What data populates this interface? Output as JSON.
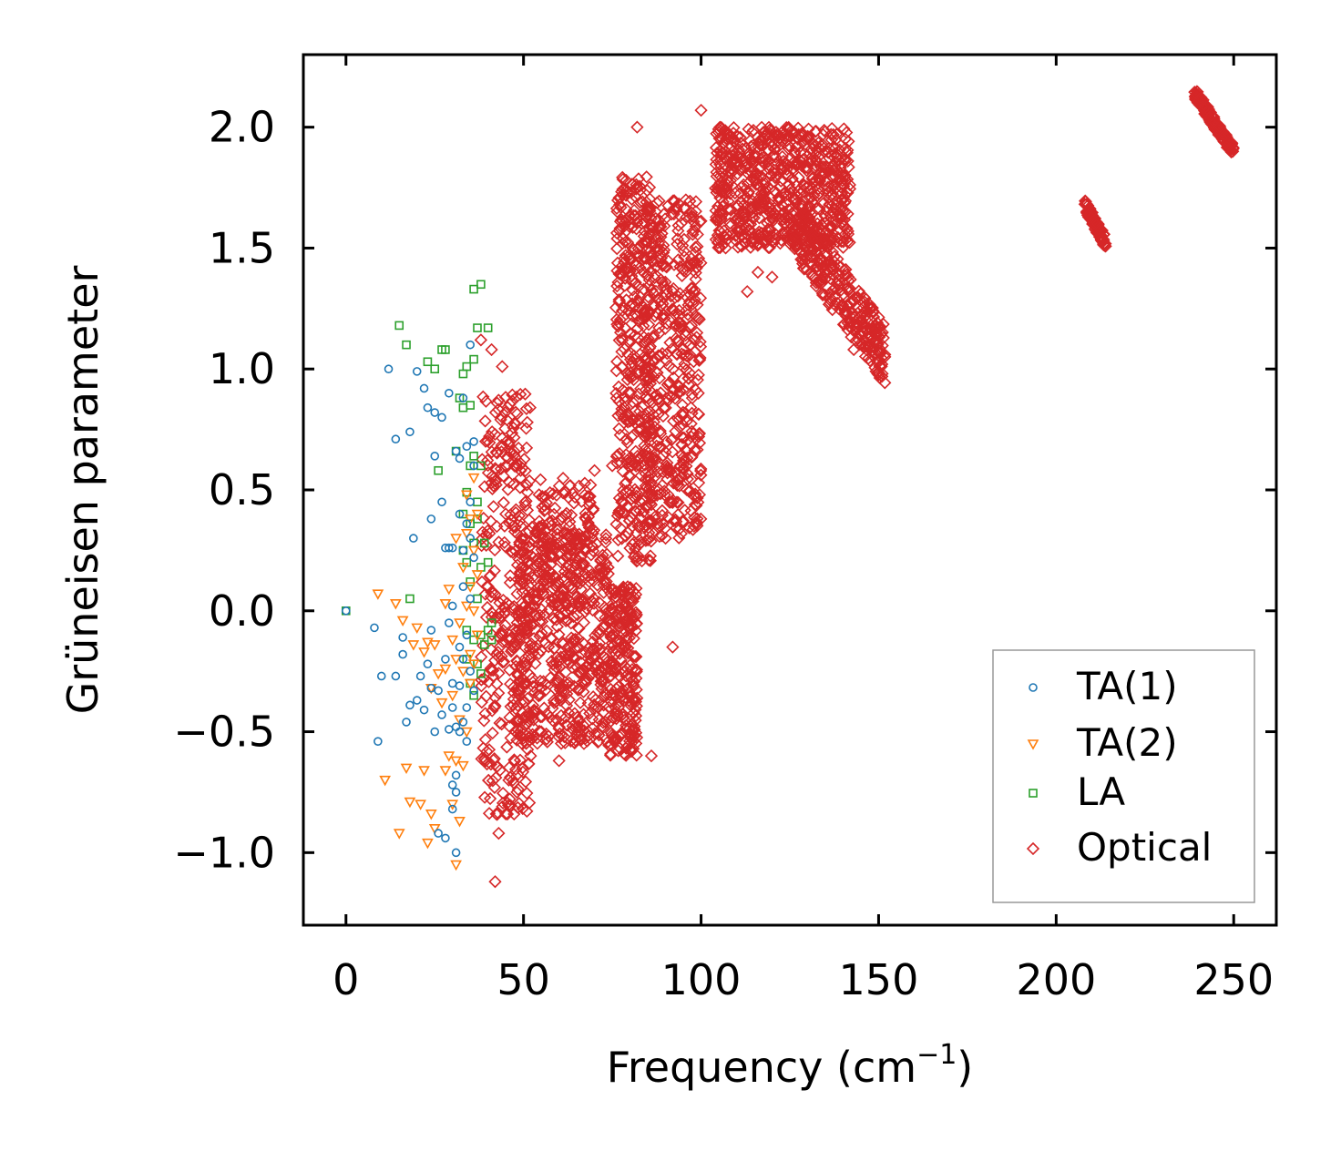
{
  "chart_data": {
    "type": "scatter",
    "title": "",
    "xlabel": "Frequency (cm",
    "xlabel_sup": "−1",
    "xlabel_tail": ")",
    "ylabel": "Grüneisen parameter",
    "xlim": [
      -12,
      262
    ],
    "ylim": [
      -1.3,
      2.3
    ],
    "xticks": [
      0,
      50,
      100,
      150,
      200,
      250
    ],
    "xtick_labels": [
      "0",
      "50",
      "100",
      "150",
      "200",
      "250"
    ],
    "yticks": [
      -1.0,
      -0.5,
      0.0,
      0.5,
      1.0,
      1.5,
      2.0
    ],
    "ytick_labels": [
      "−1.0",
      "−0.5",
      "0.0",
      "0.5",
      "1.0",
      "1.5",
      "2.0"
    ],
    "legend_position": "lower-right",
    "series": [
      {
        "name": "TA(1)",
        "marker": "circle",
        "color": "#1f77b4",
        "points": [
          [
            0,
            0.0
          ],
          [
            8,
            -0.07
          ],
          [
            9,
            -0.54
          ],
          [
            10,
            -0.27
          ],
          [
            12,
            1.0
          ],
          [
            14,
            -0.27
          ],
          [
            14,
            0.71
          ],
          [
            16,
            -0.11
          ],
          [
            16,
            -0.18
          ],
          [
            17,
            -0.46
          ],
          [
            18,
            0.74
          ],
          [
            18,
            -0.39
          ],
          [
            19,
            0.3
          ],
          [
            20,
            -0.37
          ],
          [
            20,
            0.99
          ],
          [
            21,
            -0.27
          ],
          [
            22,
            -0.41
          ],
          [
            22,
            0.92
          ],
          [
            23,
            0.84
          ],
          [
            23,
            -0.22
          ],
          [
            24,
            -0.08
          ],
          [
            24,
            -0.32
          ],
          [
            24,
            0.38
          ],
          [
            25,
            0.82
          ],
          [
            25,
            -0.5
          ],
          [
            25,
            0.64
          ],
          [
            26,
            -0.92
          ],
          [
            26,
            -0.33
          ],
          [
            27,
            0.8
          ],
          [
            27,
            0.45
          ],
          [
            27,
            -0.43
          ],
          [
            28,
            -0.94
          ],
          [
            28,
            -0.2
          ],
          [
            28,
            0.26
          ],
          [
            29,
            0.9
          ],
          [
            29,
            -0.49
          ],
          [
            29,
            0.26
          ],
          [
            29,
            -0.05
          ],
          [
            30,
            -0.82
          ],
          [
            30,
            -0.72
          ],
          [
            30,
            0.26
          ],
          [
            30,
            -0.4
          ],
          [
            30,
            0.02
          ],
          [
            30,
            -0.3
          ],
          [
            31,
            -1.0
          ],
          [
            31,
            0.66
          ],
          [
            31,
            -0.75
          ],
          [
            31,
            -0.48
          ],
          [
            31,
            -0.68
          ],
          [
            32,
            0.4
          ],
          [
            32,
            0.63
          ],
          [
            32,
            -0.15
          ],
          [
            32,
            -0.5
          ],
          [
            32,
            -0.31
          ],
          [
            33,
            -0.2
          ],
          [
            33,
            0.1
          ],
          [
            33,
            -0.46
          ],
          [
            33,
            0.88
          ],
          [
            33,
            0.25
          ],
          [
            34,
            -0.4
          ],
          [
            34,
            0.36
          ],
          [
            34,
            -0.54
          ],
          [
            34,
            0.68
          ],
          [
            34,
            -0.1
          ],
          [
            35,
            1.1
          ],
          [
            35,
            0.45
          ],
          [
            35,
            -0.25
          ],
          [
            35,
            0.3
          ],
          [
            35,
            0.05
          ],
          [
            36,
            0.22
          ],
          [
            36,
            0.7
          ],
          [
            36,
            -0.33
          ],
          [
            36,
            0.6
          ]
        ]
      },
      {
        "name": "TA(2)",
        "marker": "triangle-down",
        "color": "#ff7f0e",
        "points": [
          [
            9,
            0.07
          ],
          [
            11,
            -0.7
          ],
          [
            14,
            0.03
          ],
          [
            15,
            -0.92
          ],
          [
            16,
            -0.04
          ],
          [
            17,
            -0.65
          ],
          [
            18,
            -0.79
          ],
          [
            19,
            -0.14
          ],
          [
            20,
            -0.07
          ],
          [
            21,
            -0.8
          ],
          [
            22,
            -0.17
          ],
          [
            22,
            -0.66
          ],
          [
            23,
            -0.96
          ],
          [
            23,
            -0.13
          ],
          [
            24,
            -0.84
          ],
          [
            24,
            -0.32
          ],
          [
            25,
            -0.9
          ],
          [
            25,
            -0.14
          ],
          [
            26,
            -0.26
          ],
          [
            27,
            -0.38
          ],
          [
            28,
            0.03
          ],
          [
            28,
            -0.66
          ],
          [
            28,
            -0.24
          ],
          [
            29,
            0.09
          ],
          [
            29,
            -0.6
          ],
          [
            30,
            -0.35
          ],
          [
            30,
            -0.8
          ],
          [
            30,
            -0.12
          ],
          [
            31,
            -1.05
          ],
          [
            31,
            -0.62
          ],
          [
            31,
            -0.2
          ],
          [
            31,
            0.3
          ],
          [
            32,
            -0.87
          ],
          [
            32,
            -0.45
          ],
          [
            32,
            -0.05
          ],
          [
            33,
            0.18
          ],
          [
            33,
            -0.64
          ],
          [
            33,
            -0.25
          ],
          [
            34,
            0.48
          ],
          [
            34,
            -0.5
          ],
          [
            34,
            0.02
          ],
          [
            34,
            0.32
          ],
          [
            35,
            -0.3
          ],
          [
            35,
            0.1
          ],
          [
            35,
            0.38
          ],
          [
            35,
            -0.18
          ],
          [
            36,
            0.55
          ],
          [
            36,
            0.0
          ],
          [
            36,
            -0.22
          ],
          [
            36,
            0.25
          ],
          [
            37,
            0.4
          ],
          [
            37,
            -0.1
          ],
          [
            37,
            0.15
          ]
        ]
      },
      {
        "name": "LA",
        "marker": "square",
        "color": "#2ca02c",
        "points": [
          [
            0,
            0.0
          ],
          [
            15,
            1.18
          ],
          [
            17,
            1.1
          ],
          [
            18,
            0.05
          ],
          [
            23,
            1.03
          ],
          [
            25,
            1.0
          ],
          [
            26,
            0.58
          ],
          [
            27,
            1.08
          ],
          [
            28,
            1.08
          ],
          [
            31,
            0.66
          ],
          [
            32,
            0.88
          ],
          [
            33,
            0.98
          ],
          [
            33,
            0.84
          ],
          [
            33,
            0.25
          ],
          [
            33,
            0.4
          ],
          [
            34,
            0.49
          ],
          [
            34,
            1.01
          ],
          [
            34,
            -0.08
          ],
          [
            34,
            -0.2
          ],
          [
            34,
            0.2
          ],
          [
            35,
            0.36
          ],
          [
            35,
            0.6
          ],
          [
            35,
            -0.3
          ],
          [
            35,
            0.85
          ],
          [
            35,
            0.12
          ],
          [
            36,
            1.33
          ],
          [
            36,
            0.64
          ],
          [
            36,
            -0.12
          ],
          [
            36,
            0.28
          ],
          [
            36,
            -0.35
          ],
          [
            36,
            1.04
          ],
          [
            37,
            1.17
          ],
          [
            37,
            0.45
          ],
          [
            37,
            -0.22
          ],
          [
            37,
            0.05
          ],
          [
            37,
            0.38
          ],
          [
            38,
            1.35
          ],
          [
            38,
            0.6
          ],
          [
            38,
            -0.1
          ],
          [
            38,
            -0.26
          ],
          [
            38,
            0.18
          ],
          [
            39,
            0.28
          ],
          [
            39,
            -0.14
          ],
          [
            40,
            1.17
          ],
          [
            40,
            -0.08
          ],
          [
            40,
            0.2
          ],
          [
            41,
            -0.12
          ],
          [
            41,
            -0.05
          ]
        ]
      },
      {
        "name": "Optical",
        "marker": "diamond",
        "color": "#d62728",
        "clusters": [
          {
            "x": [
              38,
              52
            ],
            "y": [
              -0.85,
              0.9
            ],
            "count": 340
          },
          {
            "x": [
              48,
              74
            ],
            "y": [
              -0.55,
              0.35
            ],
            "count": 520
          },
          {
            "x": [
              54,
              70
            ],
            "y": [
              0.0,
              0.55
            ],
            "count": 140
          },
          {
            "x": [
              74,
              82
            ],
            "y": [
              -0.6,
              0.1
            ],
            "count": 240
          },
          {
            "x": [
              76,
              86
            ],
            "y": [
              0.2,
              1.8
            ],
            "count": 380
          },
          {
            "x": [
              84,
              100
            ],
            "y": [
              0.3,
              1.7
            ],
            "count": 480
          },
          {
            "x": [
              104,
              142
            ],
            "y": [
              1.5,
              2.0
            ],
            "count": 700
          },
          {
            "x": [
              126,
              152
            ],
            "y": [
              1.05,
              1.6
            ],
            "count": 320
          },
          {
            "x": [
              208,
              214
            ],
            "y": [
              1.52,
              1.68
            ],
            "count": 90
          },
          {
            "x": [
              239,
              250
            ],
            "y": [
              1.9,
              2.14
            ],
            "count": 150
          }
        ],
        "points": [
          [
            44,
            1.01
          ],
          [
            41,
            1.08
          ],
          [
            38,
            1.12
          ],
          [
            82,
            2.0
          ],
          [
            100,
            2.07
          ],
          [
            92,
            -0.15
          ],
          [
            42,
            -1.12
          ],
          [
            43,
            -0.92
          ],
          [
            45,
            -0.84
          ],
          [
            113,
            1.32
          ],
          [
            116,
            1.4
          ],
          [
            120,
            1.38
          ],
          [
            143,
            1.08
          ],
          [
            86,
            -0.6
          ],
          [
            71,
            -0.4
          ],
          [
            60,
            -0.62
          ],
          [
            52,
            -0.6
          ],
          [
            47,
            -0.7
          ],
          [
            55,
            -0.5
          ],
          [
            66,
            -0.38
          ],
          [
            75,
            0.6
          ],
          [
            70,
            0.58
          ],
          [
            90,
            0.3
          ],
          [
            98,
            0.35
          ],
          [
            65,
            0.3
          ],
          [
            45,
            0.6
          ]
        ]
      }
    ]
  }
}
